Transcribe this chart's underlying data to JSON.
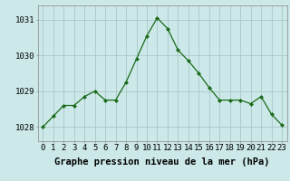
{
  "x": [
    0,
    1,
    2,
    3,
    4,
    5,
    6,
    7,
    8,
    9,
    10,
    11,
    12,
    13,
    14,
    15,
    16,
    17,
    18,
    19,
    20,
    21,
    22,
    23
  ],
  "y": [
    1028.0,
    1028.3,
    1028.6,
    1028.6,
    1028.85,
    1029.0,
    1028.75,
    1028.75,
    1029.25,
    1029.9,
    1030.55,
    1031.05,
    1030.75,
    1030.15,
    1029.85,
    1029.5,
    1029.1,
    1028.75,
    1028.75,
    1028.75,
    1028.65,
    1028.85,
    1028.35,
    1028.05
  ],
  "line_color": "#1a6b1a",
  "marker": "D",
  "marker_size": 2.0,
  "bg_color": "#cce8e8",
  "grid_color": "#aac8c8",
  "xlabel": "Graphe pression niveau de la mer (hPa)",
  "xlabel_fontsize": 7.5,
  "ytick_labels": [
    "1028",
    "1029",
    "1030",
    "1031"
  ],
  "ytick_values": [
    1028,
    1029,
    1030,
    1031
  ],
  "xticks": [
    0,
    1,
    2,
    3,
    4,
    5,
    6,
    7,
    8,
    9,
    10,
    11,
    12,
    13,
    14,
    15,
    16,
    17,
    18,
    19,
    20,
    21,
    22,
    23
  ],
  "ylim": [
    1027.6,
    1031.4
  ],
  "xlim": [
    -0.5,
    23.5
  ],
  "tick_fontsize": 6.5,
  "spine_color": "#888888"
}
